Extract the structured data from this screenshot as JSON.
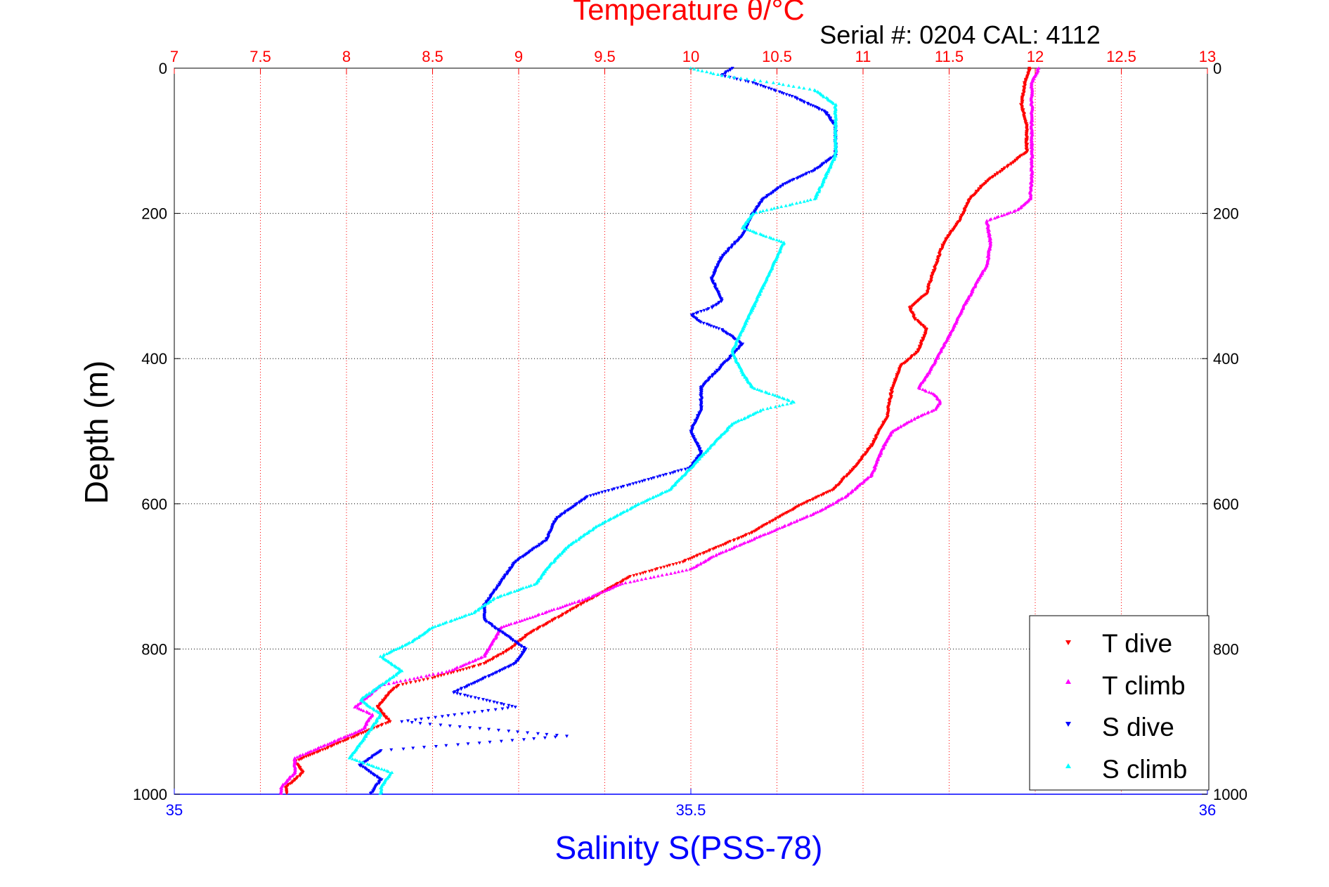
{
  "colors": {
    "temp_axis": "#ff0000",
    "sal_axis": "#0000ff",
    "depth_axis": "#000000",
    "t_dive": "#ff0000",
    "t_climb": "#ff00ff",
    "s_dive": "#0000ff",
    "s_climb": "#00ffff"
  },
  "chart_data": {
    "type": "scatter",
    "title": "Temperature θ/°C",
    "subtitle": "Serial #: 0204  CAL: 4112",
    "ylabel": "Depth (m)",
    "xlabel_bottom": "Salinity S(PSS-78)",
    "ylim": [
      0,
      1000
    ],
    "y_reversed": true,
    "temp_lim": [
      7,
      13
    ],
    "sal_lim": [
      35,
      36
    ],
    "temp_ticks": [
      "7",
      "7.5",
      "8",
      "8.5",
      "9",
      "9.5",
      "10",
      "10.5",
      "11",
      "11.5",
      "12",
      "12.5",
      "13"
    ],
    "sal_ticks": [
      "35",
      "35.5",
      "36"
    ],
    "depth_ticks_left": [
      "0",
      "200",
      "400",
      "600",
      "800",
      "1000"
    ],
    "depth_ticks_right": [
      "0",
      "200",
      "400",
      "600",
      "800",
      "1000"
    ],
    "grid": true,
    "legend_position": "bottom-right",
    "legend": [
      "T dive",
      "T climb",
      "S dive",
      "S climb"
    ],
    "series": [
      {
        "name": "T dive",
        "axis": "temperature",
        "marker": "triangle-down",
        "points": [
          [
            0,
            11.97
          ],
          [
            20,
            11.94
          ],
          [
            50,
            11.92
          ],
          [
            80,
            11.95
          ],
          [
            100,
            11.95
          ],
          [
            115,
            11.95
          ],
          [
            130,
            11.87
          ],
          [
            150,
            11.75
          ],
          [
            160,
            11.7
          ],
          [
            180,
            11.62
          ],
          [
            200,
            11.58
          ],
          [
            210,
            11.56
          ],
          [
            240,
            11.47
          ],
          [
            280,
            11.41
          ],
          [
            310,
            11.37
          ],
          [
            330,
            11.27
          ],
          [
            345,
            11.3
          ],
          [
            360,
            11.37
          ],
          [
            390,
            11.32
          ],
          [
            410,
            11.22
          ],
          [
            440,
            11.17
          ],
          [
            480,
            11.14
          ],
          [
            520,
            11.05
          ],
          [
            550,
            10.95
          ],
          [
            580,
            10.83
          ],
          [
            600,
            10.65
          ],
          [
            620,
            10.5
          ],
          [
            640,
            10.35
          ],
          [
            660,
            10.15
          ],
          [
            680,
            9.95
          ],
          [
            700,
            9.65
          ],
          [
            720,
            9.5
          ],
          [
            740,
            9.35
          ],
          [
            760,
            9.2
          ],
          [
            780,
            9.05
          ],
          [
            800,
            8.95
          ],
          [
            820,
            8.8
          ],
          [
            840,
            8.5
          ],
          [
            850,
            8.3
          ],
          [
            860,
            8.25
          ],
          [
            880,
            8.18
          ],
          [
            900,
            8.25
          ],
          [
            910,
            8.15
          ],
          [
            920,
            8.05
          ],
          [
            940,
            7.85
          ],
          [
            955,
            7.7
          ],
          [
            970,
            7.75
          ],
          [
            990,
            7.65
          ],
          [
            1000,
            7.65
          ]
        ]
      },
      {
        "name": "T climb",
        "axis": "temperature",
        "marker": "triangle-up",
        "points": [
          [
            0,
            12.02
          ],
          [
            20,
            11.98
          ],
          [
            50,
            11.98
          ],
          [
            100,
            11.98
          ],
          [
            150,
            11.98
          ],
          [
            180,
            11.97
          ],
          [
            195,
            11.9
          ],
          [
            210,
            11.72
          ],
          [
            240,
            11.74
          ],
          [
            270,
            11.72
          ],
          [
            300,
            11.65
          ],
          [
            330,
            11.58
          ],
          [
            360,
            11.52
          ],
          [
            390,
            11.45
          ],
          [
            420,
            11.38
          ],
          [
            440,
            11.32
          ],
          [
            450,
            11.42
          ],
          [
            460,
            11.45
          ],
          [
            470,
            11.42
          ],
          [
            480,
            11.32
          ],
          [
            500,
            11.17
          ],
          [
            520,
            11.12
          ],
          [
            560,
            11.05
          ],
          [
            590,
            10.9
          ],
          [
            610,
            10.75
          ],
          [
            630,
            10.55
          ],
          [
            650,
            10.35
          ],
          [
            670,
            10.15
          ],
          [
            690,
            10.0
          ],
          [
            710,
            9.6
          ],
          [
            730,
            9.4
          ],
          [
            750,
            9.15
          ],
          [
            770,
            8.9
          ],
          [
            790,
            8.85
          ],
          [
            810,
            8.8
          ],
          [
            830,
            8.6
          ],
          [
            850,
            8.2
          ],
          [
            870,
            8.1
          ],
          [
            880,
            8.05
          ],
          [
            890,
            8.15
          ],
          [
            900,
            8.12
          ],
          [
            910,
            8.1
          ],
          [
            930,
            7.9
          ],
          [
            950,
            7.7
          ],
          [
            970,
            7.7
          ],
          [
            990,
            7.62
          ],
          [
            1000,
            7.62
          ]
        ]
      },
      {
        "name": "S dive",
        "axis": "salinity",
        "marker": "triangle-down",
        "points": [
          [
            0,
            35.54
          ],
          [
            10,
            35.53
          ],
          [
            20,
            35.56
          ],
          [
            30,
            35.58
          ],
          [
            40,
            35.6
          ],
          [
            60,
            35.63
          ],
          [
            80,
            35.64
          ],
          [
            100,
            35.64
          ],
          [
            120,
            35.64
          ],
          [
            140,
            35.62
          ],
          [
            160,
            35.59
          ],
          [
            180,
            35.57
          ],
          [
            200,
            35.56
          ],
          [
            230,
            35.55
          ],
          [
            260,
            35.53
          ],
          [
            290,
            35.52
          ],
          [
            320,
            35.53
          ],
          [
            330,
            35.52
          ],
          [
            340,
            35.5
          ],
          [
            350,
            35.51
          ],
          [
            360,
            35.53
          ],
          [
            380,
            35.55
          ],
          [
            410,
            35.53
          ],
          [
            440,
            35.51
          ],
          [
            470,
            35.51
          ],
          [
            500,
            35.5
          ],
          [
            530,
            35.51
          ],
          [
            550,
            35.5
          ],
          [
            570,
            35.45
          ],
          [
            590,
            35.4
          ],
          [
            620,
            35.37
          ],
          [
            650,
            35.36
          ],
          [
            680,
            35.33
          ],
          [
            700,
            35.32
          ],
          [
            720,
            35.31
          ],
          [
            740,
            35.3
          ],
          [
            760,
            35.3
          ],
          [
            780,
            35.32
          ],
          [
            800,
            35.34
          ],
          [
            820,
            35.33
          ],
          [
            840,
            35.3
          ],
          [
            860,
            35.27
          ],
          [
            880,
            35.33
          ],
          [
            900,
            35.22
          ],
          [
            920,
            35.38
          ],
          [
            940,
            35.2
          ],
          [
            960,
            35.18
          ],
          [
            980,
            35.2
          ],
          [
            1000,
            35.19
          ]
        ]
      },
      {
        "name": "S climb",
        "axis": "salinity",
        "marker": "triangle-up",
        "points": [
          [
            0,
            35.5
          ],
          [
            10,
            35.53
          ],
          [
            20,
            35.58
          ],
          [
            30,
            35.62
          ],
          [
            50,
            35.64
          ],
          [
            80,
            35.64
          ],
          [
            120,
            35.64
          ],
          [
            150,
            35.63
          ],
          [
            180,
            35.62
          ],
          [
            200,
            35.56
          ],
          [
            220,
            35.55
          ],
          [
            240,
            35.59
          ],
          [
            270,
            35.58
          ],
          [
            300,
            35.57
          ],
          [
            330,
            35.56
          ],
          [
            360,
            35.55
          ],
          [
            390,
            35.54
          ],
          [
            420,
            35.55
          ],
          [
            440,
            35.56
          ],
          [
            460,
            35.6
          ],
          [
            470,
            35.57
          ],
          [
            490,
            35.54
          ],
          [
            520,
            35.52
          ],
          [
            550,
            35.5
          ],
          [
            580,
            35.48
          ],
          [
            600,
            35.45
          ],
          [
            630,
            35.41
          ],
          [
            660,
            35.38
          ],
          [
            690,
            35.36
          ],
          [
            710,
            35.35
          ],
          [
            730,
            35.31
          ],
          [
            750,
            35.29
          ],
          [
            770,
            35.25
          ],
          [
            790,
            35.23
          ],
          [
            810,
            35.2
          ],
          [
            830,
            35.22
          ],
          [
            850,
            35.2
          ],
          [
            870,
            35.18
          ],
          [
            890,
            35.2
          ],
          [
            910,
            35.19
          ],
          [
            930,
            35.18
          ],
          [
            950,
            35.17
          ],
          [
            970,
            35.21
          ],
          [
            990,
            35.2
          ],
          [
            1000,
            35.2
          ]
        ]
      }
    ]
  }
}
